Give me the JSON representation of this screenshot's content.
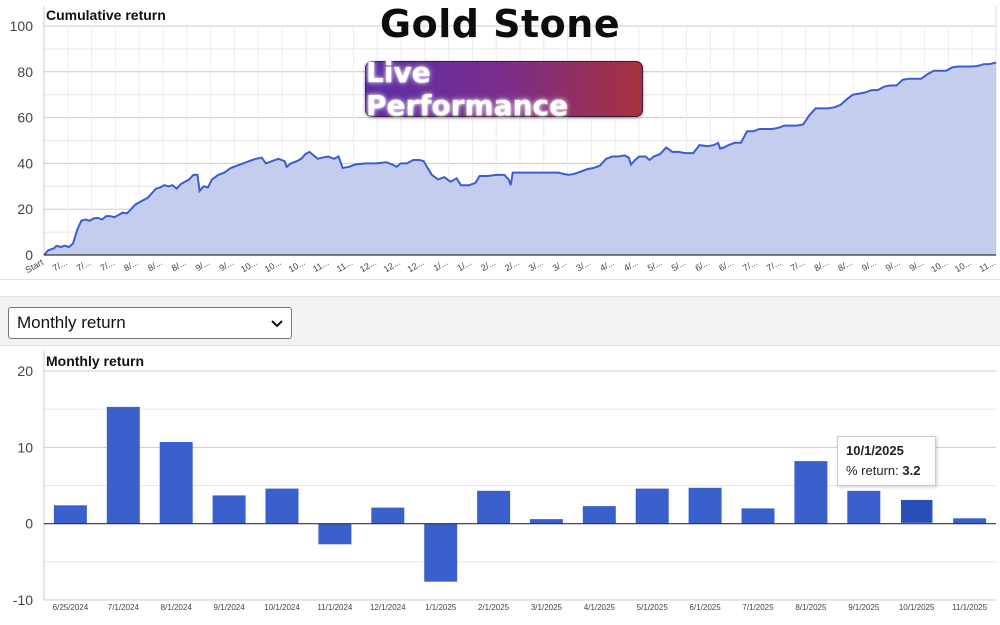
{
  "brand": {
    "title": "Gold Stone",
    "badge": "Live Performance"
  },
  "selector": {
    "value": "Monthly return"
  },
  "tooltip": {
    "date": "10/1/2025",
    "label": "% return:",
    "value": "3.2"
  },
  "chart_data": [
    {
      "type": "area",
      "title": "Cumulative return",
      "ylim": [
        0,
        100
      ],
      "yticks": [
        0,
        20,
        40,
        60,
        80,
        100
      ],
      "grid": true,
      "x_tick_labels": [
        "Start",
        "7/...",
        "7/...",
        "7/...",
        "8/...",
        "8/...",
        "8/...",
        "9/...",
        "9/...",
        "10...",
        "10...",
        "10...",
        "11...",
        "11...",
        "12...",
        "12...",
        "12...",
        "1/...",
        "1/...",
        "2/...",
        "2/...",
        "3/...",
        "3/...",
        "3/...",
        "4/...",
        "4/...",
        "5/...",
        "5/...",
        "6/...",
        "6/...",
        "7/...",
        "7/...",
        "7/...",
        "8/...",
        "8/...",
        "9/...",
        "9/...",
        "9/...",
        "10...",
        "10...",
        "11..."
      ],
      "points": [
        [
          0,
          0
        ],
        [
          2,
          2
        ],
        [
          5,
          3
        ],
        [
          6,
          4
        ],
        [
          8,
          3.5
        ],
        [
          10,
          4
        ],
        [
          12,
          3.5
        ],
        [
          14,
          5
        ],
        [
          16,
          11
        ],
        [
          18,
          15
        ],
        [
          20,
          15.5
        ],
        [
          22,
          15
        ],
        [
          24,
          16
        ],
        [
          26,
          16.2
        ],
        [
          28,
          15.5
        ],
        [
          30,
          17
        ],
        [
          32,
          17
        ],
        [
          34,
          16.5
        ],
        [
          36,
          17.5
        ],
        [
          38,
          18.5
        ],
        [
          40,
          18.2
        ],
        [
          42,
          20
        ],
        [
          44,
          22
        ],
        [
          46,
          23
        ],
        [
          48,
          24
        ],
        [
          50,
          25
        ],
        [
          52,
          27
        ],
        [
          54,
          29
        ],
        [
          56,
          29.5
        ],
        [
          58,
          30.5
        ],
        [
          60,
          30
        ],
        [
          62,
          30.5
        ],
        [
          64,
          29
        ],
        [
          66,
          31
        ],
        [
          68,
          32
        ],
        [
          70,
          33
        ],
        [
          72,
          35
        ],
        [
          74,
          35
        ],
        [
          75,
          28
        ],
        [
          77,
          30
        ],
        [
          79,
          29.5
        ],
        [
          81,
          33
        ],
        [
          84,
          35
        ],
        [
          87,
          36
        ],
        [
          90,
          38
        ],
        [
          93,
          39
        ],
        [
          96,
          40
        ],
        [
          99,
          41
        ],
        [
          102,
          42
        ],
        [
          105,
          42.5
        ],
        [
          107,
          40
        ],
        [
          110,
          41
        ],
        [
          113,
          42
        ],
        [
          116,
          41
        ],
        [
          117,
          38.5
        ],
        [
          119,
          40
        ],
        [
          122,
          41
        ],
        [
          124,
          42
        ],
        [
          126,
          44
        ],
        [
          128,
          45
        ],
        [
          130,
          43.5
        ],
        [
          132,
          42
        ],
        [
          134,
          42.5
        ],
        [
          137,
          43
        ],
        [
          140,
          42
        ],
        [
          142,
          43
        ],
        [
          144,
          38
        ],
        [
          147,
          38.5
        ],
        [
          150,
          39.5
        ],
        [
          155,
          40
        ],
        [
          160,
          40
        ],
        [
          165,
          40.5
        ],
        [
          168,
          39.5
        ],
        [
          170,
          38.5
        ],
        [
          172,
          40
        ],
        [
          175,
          40
        ],
        [
          178,
          41.5
        ],
        [
          181,
          41.5
        ],
        [
          183,
          41
        ],
        [
          185,
          38
        ],
        [
          187,
          35
        ],
        [
          190,
          33
        ],
        [
          193,
          34
        ],
        [
          196,
          32
        ],
        [
          199,
          33.5
        ],
        [
          201,
          30.5
        ],
        [
          205,
          30.5
        ],
        [
          208,
          31.5
        ],
        [
          210,
          34.5
        ],
        [
          214,
          34.5
        ],
        [
          218,
          35
        ],
        [
          222,
          35
        ],
        [
          224,
          33
        ],
        [
          225,
          30.5
        ],
        [
          226,
          36
        ],
        [
          230,
          36
        ],
        [
          236,
          36
        ],
        [
          242,
          36
        ],
        [
          248,
          36
        ],
        [
          250,
          35.5
        ],
        [
          253,
          35
        ],
        [
          256,
          35.5
        ],
        [
          259,
          36.5
        ],
        [
          262,
          37.5
        ],
        [
          265,
          38
        ],
        [
          268,
          39
        ],
        [
          271,
          42
        ],
        [
          274,
          43
        ],
        [
          277,
          43
        ],
        [
          280,
          43.5
        ],
        [
          282,
          42.5
        ],
        [
          283,
          39.5
        ],
        [
          285,
          41.5
        ],
        [
          287,
          43
        ],
        [
          290,
          43
        ],
        [
          292,
          41.5
        ],
        [
          294,
          43
        ],
        [
          297,
          44
        ],
        [
          300,
          47
        ],
        [
          303,
          45
        ],
        [
          306,
          45
        ],
        [
          309,
          44.5
        ],
        [
          313,
          44.5
        ],
        [
          316,
          48
        ],
        [
          320,
          47.5
        ],
        [
          323,
          48
        ],
        [
          325,
          49
        ],
        [
          326,
          46.5
        ],
        [
          328,
          47
        ],
        [
          330,
          48
        ],
        [
          333,
          49
        ],
        [
          336,
          49
        ],
        [
          339,
          54
        ],
        [
          342,
          54
        ],
        [
          345,
          55
        ],
        [
          348,
          55
        ],
        [
          351,
          55
        ],
        [
          354,
          55.5
        ],
        [
          357,
          56.5
        ],
        [
          360,
          56.5
        ],
        [
          363,
          56.5
        ],
        [
          366,
          57
        ],
        [
          369,
          61
        ],
        [
          372,
          64
        ],
        [
          375,
          64
        ],
        [
          378,
          64
        ],
        [
          381,
          64.5
        ],
        [
          384,
          65.5
        ],
        [
          387,
          68
        ],
        [
          390,
          70
        ],
        [
          393,
          70.5
        ],
        [
          396,
          71
        ],
        [
          399,
          72
        ],
        [
          402,
          72
        ],
        [
          405,
          73.5
        ],
        [
          408,
          74
        ],
        [
          411,
          74
        ],
        [
          414,
          76.5
        ],
        [
          417,
          77
        ],
        [
          420,
          77
        ],
        [
          423,
          77
        ],
        [
          426,
          79
        ],
        [
          429,
          80.5
        ],
        [
          432,
          80.5
        ],
        [
          435,
          80.5
        ],
        [
          438,
          82
        ],
        [
          441,
          82.3
        ],
        [
          444,
          82.3
        ],
        [
          447,
          82.3
        ],
        [
          450,
          82.5
        ],
        [
          453,
          83.3
        ],
        [
          456,
          83.4
        ],
        [
          459,
          84
        ]
      ]
    },
    {
      "type": "bar",
      "title": "Monthly return",
      "ylim": [
        -10,
        20
      ],
      "yticks": [
        -10,
        0,
        10,
        20
      ],
      "grid": true,
      "categories": [
        "6/25/2024",
        "7/1/2024",
        "8/1/2024",
        "9/1/2024",
        "10/1/2024",
        "11/1/2024",
        "12/1/2024",
        "1/1/2025",
        "2/1/2025",
        "3/1/2025",
        "4/1/2025",
        "5/1/2025",
        "6/1/2025",
        "7/1/2025",
        "8/1/2025",
        "9/1/2025",
        "10/1/2025",
        "11/1/2025"
      ],
      "values": [
        2.4,
        15.3,
        10.7,
        3.7,
        4.6,
        -2.7,
        2.1,
        -7.6,
        4.3,
        0.6,
        2.3,
        4.6,
        4.7,
        2.0,
        8.2,
        4.3,
        3.2,
        0.7
      ],
      "colors": {
        "bar": "#3a60cc",
        "highlight": "#2a4fb8"
      }
    }
  ]
}
